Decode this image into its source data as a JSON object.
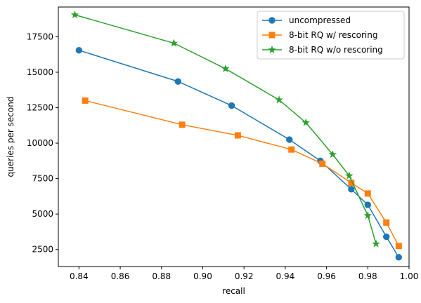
{
  "chart_data": {
    "type": "line",
    "xlabel": "recall",
    "ylabel": "queries per second",
    "xlim": [
      0.83,
      1.0
    ],
    "ylim": [
      1300,
      19600
    ],
    "x_ticks": [
      0.84,
      0.86,
      0.88,
      0.9,
      0.92,
      0.94,
      0.96,
      0.98,
      1.0
    ],
    "x_tick_labels": [
      "0.84",
      "0.86",
      "0.88",
      "0.90",
      "0.92",
      "0.94",
      "0.96",
      "0.98",
      "1.00"
    ],
    "y_ticks": [
      2500,
      5000,
      7500,
      10000,
      12500,
      15000,
      17500
    ],
    "y_tick_labels": [
      "2500",
      "5000",
      "7500",
      "10000",
      "12500",
      "15000",
      "17500"
    ],
    "grid": false,
    "legend_position": "top-right",
    "series": [
      {
        "name": "uncompressed",
        "color": "#1f77b4",
        "marker": "circle",
        "x": [
          0.84,
          0.888,
          0.914,
          0.942,
          0.957,
          0.972,
          0.98,
          0.989,
          0.995
        ],
        "y": [
          16550,
          14350,
          12650,
          10250,
          8750,
          6750,
          5650,
          3400,
          1950
        ]
      },
      {
        "name": "8-bit RQ w/ rescoring",
        "color": "#ff7f0e",
        "marker": "square",
        "x": [
          0.843,
          0.89,
          0.917,
          0.943,
          0.958,
          0.972,
          0.98,
          0.989,
          0.995
        ],
        "y": [
          13000,
          11300,
          10550,
          9550,
          8550,
          7200,
          6450,
          4400,
          2750
        ]
      },
      {
        "name": "8-bit RQ w/o rescoring",
        "color": "#2ca02c",
        "marker": "star",
        "x": [
          0.838,
          0.886,
          0.911,
          0.937,
          0.95,
          0.963,
          0.971,
          0.98,
          0.984
        ],
        "y": [
          19050,
          17050,
          15250,
          13050,
          11450,
          9200,
          7700,
          4900,
          2900
        ]
      }
    ]
  }
}
